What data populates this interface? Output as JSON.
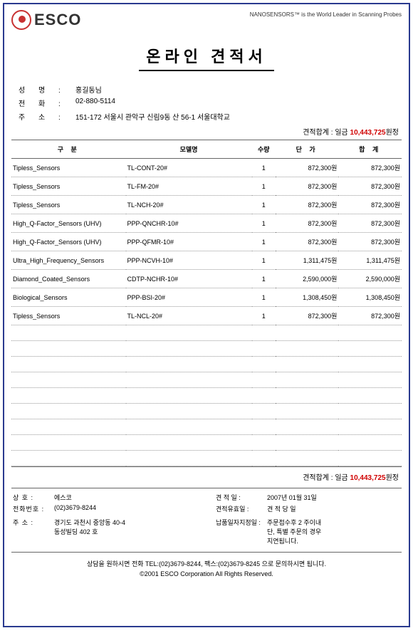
{
  "header": {
    "logo_text": "ESCO",
    "tagline": "NANOSENSORS™ is the World Leader in Scanning Probes"
  },
  "title": "온라인 견적서",
  "customer": {
    "name_label": "성    명 :",
    "name_value": "홍길동님",
    "phone_label": "전    화 :",
    "phone_value": "02-880-5114",
    "addr_label": "주    소 :",
    "addr_value": "151-172 서울시 관악구 신림9동 산 56-1 서울대학교"
  },
  "totals": {
    "label": "견적합계 : 일금 ",
    "amount": "10,443,725",
    "suffix": "원정"
  },
  "table": {
    "headers": {
      "category": "구 분",
      "model": "모델명",
      "qty": "수량",
      "price": "단 가",
      "total": "합 계"
    },
    "rows": [
      {
        "category": "Tipless_Sensors",
        "model": "TL-CONT-20#",
        "qty": "1",
        "price": "872,300원",
        "total": "872,300원"
      },
      {
        "category": "Tipless_Sensors",
        "model": "TL-FM-20#",
        "qty": "1",
        "price": "872,300원",
        "total": "872,300원"
      },
      {
        "category": "Tipless_Sensors",
        "model": "TL-NCH-20#",
        "qty": "1",
        "price": "872,300원",
        "total": "872,300원"
      },
      {
        "category": "High_Q-Factor_Sensors (UHV)",
        "model": "PPP-QNCHR-10#",
        "qty": "1",
        "price": "872,300원",
        "total": "872,300원"
      },
      {
        "category": "High_Q-Factor_Sensors (UHV)",
        "model": "PPP-QFMR-10#",
        "qty": "1",
        "price": "872,300원",
        "total": "872,300원"
      },
      {
        "category": "Ultra_High_Frequency_Sensors",
        "model": "PPP-NCVH-10#",
        "qty": "1",
        "price": "1,311,475원",
        "total": "1,311,475원"
      },
      {
        "category": "Diamond_Coated_Sensors",
        "model": "CDTP-NCHR-10#",
        "qty": "1",
        "price": "2,590,000원",
        "total": "2,590,000원"
      },
      {
        "category": "Biological_Sensors",
        "model": "PPP-BSI-20#",
        "qty": "1",
        "price": "1,308,450원",
        "total": "1,308,450원"
      },
      {
        "category": "Tipless_Sensors",
        "model": "TL-NCL-20#",
        "qty": "1",
        "price": "872,300원",
        "total": "872,300원"
      }
    ],
    "empty_rows": 9
  },
  "footer": {
    "left": {
      "company_label": "상      호 :",
      "company_value": "에스코",
      "phone_label": "전화번호 :",
      "phone_value": "(02)3679-8244",
      "addr_label": "주      소 :",
      "addr_value1": "경기도 과천시 중앙동 40-4",
      "addr_value2": "동성빌딩 402 호"
    },
    "right": {
      "date_label": "견  적  일 :",
      "date_value": "2007년 01월 31일",
      "valid_label": "견적유효일 :",
      "valid_value": "견 적 당 일",
      "delivery_label": "납품일자지정일 :",
      "delivery_value1": "주문접수후 2 주이내",
      "delivery_value2": "단, 특별 주문의 경우",
      "delivery_value3": "지연됩니다."
    }
  },
  "contact": {
    "line1": "상담을 원하시면 전화 TEL:(02)3679-8244, 팩스:(02)3679-8245 으로 문의하시면 됩니다.",
    "line2": "©2001 ESCO Corporation All Rights Reserved."
  }
}
